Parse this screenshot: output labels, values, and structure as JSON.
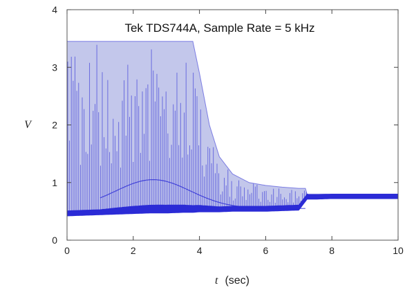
{
  "chart_data": {
    "type": "line",
    "title": "Tek TDS744A, Sample Rate = 5 kHz",
    "xlabel": "t (sec)",
    "xlabel_var": "t",
    "xlabel_unit": "(sec)",
    "ylabel": "V",
    "xlim": [
      0,
      10
    ],
    "ylim": [
      0,
      4
    ],
    "xticks": [
      0,
      2,
      4,
      6,
      8,
      10
    ],
    "yticks": [
      0,
      1,
      2,
      3,
      4
    ],
    "grid": false,
    "legend": "none",
    "color": "#2b2bd6",
    "fill_color": "#b9bde8",
    "saturation_level": 3.45,
    "series": [
      {
        "name": "",
        "x": [
          0,
          0.5,
          1,
          1.5,
          2,
          2.5,
          3,
          3.5,
          3.8,
          4.0,
          4.3,
          4.6,
          5.0,
          5.5,
          6.0,
          6.5,
          7.0,
          7.2,
          7.25,
          7.5,
          8,
          9,
          10
        ],
        "upper_envelope": [
          3.45,
          3.45,
          3.45,
          3.45,
          3.45,
          3.45,
          3.45,
          3.45,
          3.45,
          2.9,
          2.0,
          1.45,
          1.15,
          1.0,
          0.95,
          0.92,
          0.9,
          0.9,
          0.8,
          0.8,
          0.8,
          0.8,
          0.8
        ],
        "lower_envelope": [
          0.45,
          0.46,
          0.47,
          0.48,
          0.49,
          0.5,
          0.5,
          0.51,
          0.51,
          0.52,
          0.52,
          0.52,
          0.53,
          0.53,
          0.53,
          0.54,
          0.55,
          0.7,
          0.74,
          0.74,
          0.75,
          0.75,
          0.75
        ]
      }
    ]
  }
}
